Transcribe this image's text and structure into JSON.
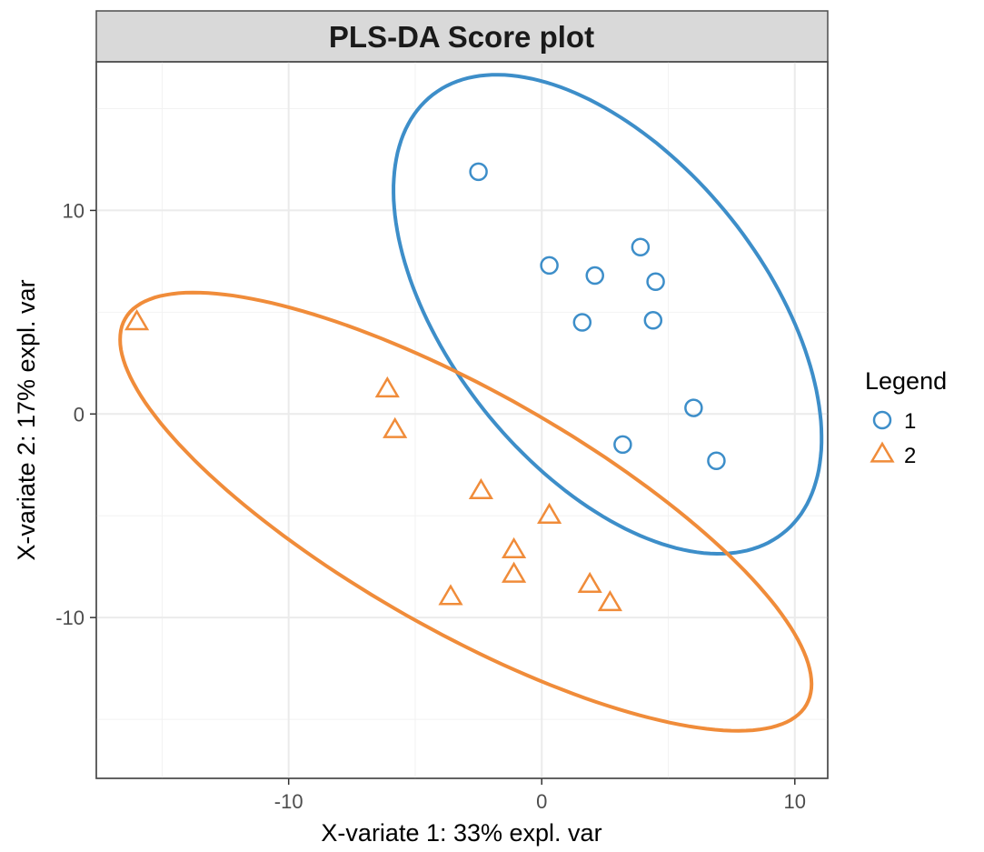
{
  "chart_data": {
    "type": "scatter",
    "title": "PLS-DA Score plot",
    "xlabel": "X-variate 1: 33% expl. var",
    "ylabel": "X-variate 2: 17% expl. var",
    "xlim": [
      -17.6,
      11.3
    ],
    "ylim": [
      -17.9,
      17.3
    ],
    "x_ticks": [
      -10,
      0,
      10
    ],
    "x_tick_labels": [
      "-10",
      "0",
      "10"
    ],
    "y_ticks": [
      -10,
      0,
      10
    ],
    "y_tick_labels": [
      "-10",
      "0",
      "10"
    ],
    "grid": true,
    "legend": {
      "title": "Legend",
      "position": "right"
    },
    "series": [
      {
        "name": "1",
        "marker": "circle",
        "color": "#3d8ec9",
        "points": [
          [
            -2.5,
            11.9
          ],
          [
            0.3,
            7.3
          ],
          [
            2.1,
            6.8
          ],
          [
            3.9,
            8.2
          ],
          [
            4.5,
            6.5
          ],
          [
            1.6,
            4.5
          ],
          [
            4.4,
            4.6
          ],
          [
            6.0,
            0.3
          ],
          [
            3.2,
            -1.5
          ],
          [
            6.9,
            -2.3
          ]
        ],
        "ellipse": {
          "center": [
            2.6,
            4.9
          ],
          "semi_major": 12.9,
          "semi_minor": 6.6,
          "angle_deg": -61.5
        }
      },
      {
        "name": "2",
        "marker": "triangle",
        "color": "#f08c3a",
        "points": [
          [
            -16.0,
            4.5
          ],
          [
            -6.1,
            1.2
          ],
          [
            -5.8,
            -0.8
          ],
          [
            -2.4,
            -3.8
          ],
          [
            0.3,
            -5.0
          ],
          [
            -1.1,
            -6.7
          ],
          [
            -1.1,
            -7.9
          ],
          [
            -3.6,
            -9.0
          ],
          [
            1.9,
            -8.4
          ],
          [
            2.7,
            -9.3
          ]
        ],
        "ellipse": {
          "center": [
            -3.0,
            -4.8
          ],
          "semi_major": 16.5,
          "semi_minor": 5.5,
          "angle_deg": -36.5
        }
      }
    ]
  }
}
